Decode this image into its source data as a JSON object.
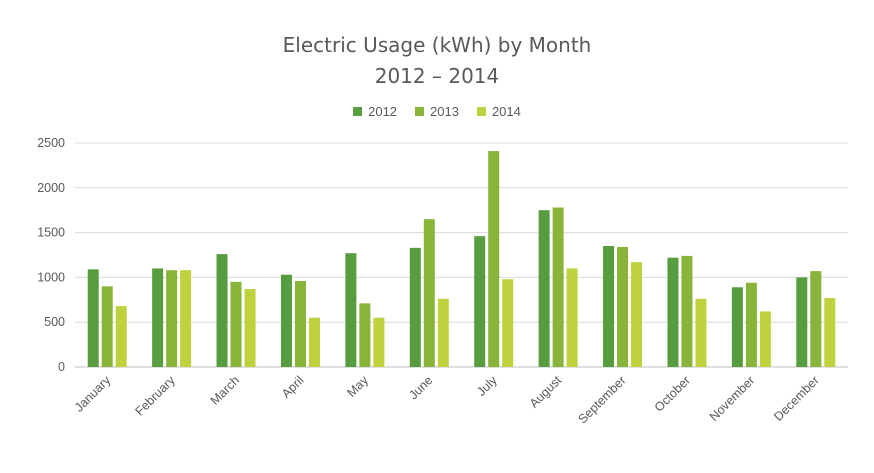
{
  "chart_data": {
    "type": "bar",
    "title_line1": "Electric Usage (kWh) by Month",
    "title_line2": "2012 – 2014",
    "categories": [
      "January",
      "February",
      "March",
      "April",
      "May",
      "June",
      "July",
      "August",
      "September",
      "October",
      "November",
      "December"
    ],
    "series": [
      {
        "name": "2012",
        "color": "#579D3F",
        "values": [
          1090,
          1100,
          1260,
          1030,
          1270,
          1330,
          1460,
          1750,
          1350,
          1220,
          890,
          1000
        ]
      },
      {
        "name": "2013",
        "color": "#88B43A",
        "values": [
          900,
          1080,
          950,
          960,
          710,
          1650,
          2410,
          1780,
          1340,
          1240,
          940,
          1070
        ]
      },
      {
        "name": "2014",
        "color": "#BDD23D",
        "values": [
          680,
          1080,
          870,
          550,
          550,
          760,
          980,
          1100,
          1170,
          760,
          620,
          770
        ]
      }
    ],
    "ylim": [
      0,
      2500
    ],
    "yticks": [
      "0",
      "500",
      "1000",
      "1500",
      "2000",
      "2500"
    ],
    "grid": true,
    "legend_position": "top"
  }
}
